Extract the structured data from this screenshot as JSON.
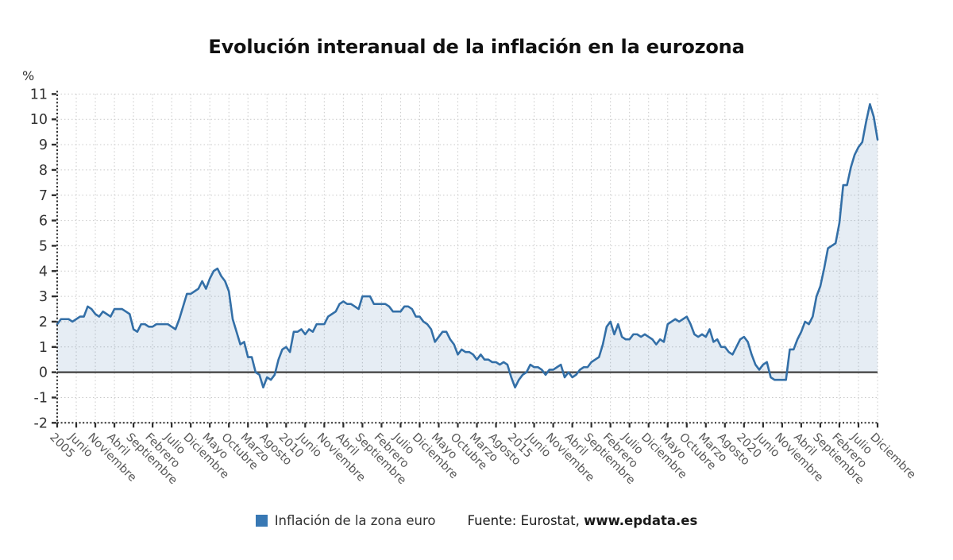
{
  "title": "Evolución interanual de la inflación en la eurozona",
  "y_axis": {
    "unit_label": "%",
    "min": -2,
    "max": 11,
    "tick_step": 1
  },
  "legend": {
    "series_label": "Inflación de la zona euro",
    "source_prefix": "Fuente: Eurostat, ",
    "source_link": "www.epdata.es"
  },
  "colors": {
    "line": "#336fa7",
    "legend_marker": "#3878b4",
    "fill": "rgba(51,111,167,0.12)",
    "grid": "#c9c9c9",
    "axis": "#2e2e2e",
    "zero_line": "#3f3f3f",
    "x_label": "#585858",
    "y_label": "#333333"
  },
  "chart_data": {
    "type": "area",
    "title": "Evolución interanual de la inflación en la eurozona",
    "frequency": "monthly",
    "x_start": "2005-01",
    "x_end": "2022-12",
    "x_tick_every": 5,
    "x_tick_labels": [
      "2005",
      "Junio",
      "Noviembre",
      "Abril",
      "Septiembre",
      "Febrero",
      "Julio",
      "Diciembre",
      "Mayo",
      "Octubre",
      "Marzo",
      "Agosto",
      "2010",
      "Junio",
      "Noviembre",
      "Abril",
      "Septiembre",
      "Febrero",
      "Julio",
      "Diciembre",
      "Mayo",
      "Octubre",
      "Marzo",
      "Agosto",
      "2015",
      "Junio",
      "Noviembre",
      "Abril",
      "Septiembre",
      "Febrero",
      "Julio",
      "Diciembre",
      "Mayo",
      "Octubre",
      "Marzo",
      "Agosto",
      "2020",
      "Junio",
      "Noviembre",
      "Abril",
      "Septiembre",
      "Febrero",
      "Julio",
      "Diciembre"
    ],
    "ylabel": "%",
    "ylim": [
      -2,
      11
    ],
    "grid": true,
    "legend_position": "bottom",
    "series": [
      {
        "name": "Inflación de la zona euro",
        "values": [
          1.9,
          2.1,
          2.1,
          2.1,
          2.0,
          2.1,
          2.2,
          2.2,
          2.6,
          2.5,
          2.3,
          2.2,
          2.4,
          2.3,
          2.2,
          2.5,
          2.5,
          2.5,
          2.4,
          2.3,
          1.7,
          1.6,
          1.9,
          1.9,
          1.8,
          1.8,
          1.9,
          1.9,
          1.9,
          1.9,
          1.8,
          1.7,
          2.1,
          2.6,
          3.1,
          3.1,
          3.2,
          3.3,
          3.6,
          3.3,
          3.7,
          4.0,
          4.1,
          3.8,
          3.6,
          3.2,
          2.1,
          1.6,
          1.1,
          1.2,
          0.6,
          0.6,
          0.0,
          -0.1,
          -0.6,
          -0.2,
          -0.3,
          -0.1,
          0.5,
          0.9,
          1.0,
          0.8,
          1.6,
          1.6,
          1.7,
          1.5,
          1.7,
          1.6,
          1.9,
          1.9,
          1.9,
          2.2,
          2.3,
          2.4,
          2.7,
          2.8,
          2.7,
          2.7,
          2.6,
          2.5,
          3.0,
          3.0,
          3.0,
          2.7,
          2.7,
          2.7,
          2.7,
          2.6,
          2.4,
          2.4,
          2.4,
          2.6,
          2.6,
          2.5,
          2.2,
          2.2,
          2.0,
          1.9,
          1.7,
          1.2,
          1.4,
          1.6,
          1.6,
          1.3,
          1.1,
          0.7,
          0.9,
          0.8,
          0.8,
          0.7,
          0.5,
          0.7,
          0.5,
          0.5,
          0.4,
          0.4,
          0.3,
          0.4,
          0.3,
          -0.2,
          -0.6,
          -0.3,
          -0.1,
          0.0,
          0.3,
          0.2,
          0.2,
          0.1,
          -0.1,
          0.1,
          0.1,
          0.2,
          0.3,
          -0.2,
          0.0,
          -0.2,
          -0.1,
          0.1,
          0.2,
          0.2,
          0.4,
          0.5,
          0.6,
          1.1,
          1.8,
          2.0,
          1.5,
          1.9,
          1.4,
          1.3,
          1.3,
          1.5,
          1.5,
          1.4,
          1.5,
          1.4,
          1.3,
          1.1,
          1.3,
          1.2,
          1.9,
          2.0,
          2.1,
          2.0,
          2.1,
          2.2,
          1.9,
          1.5,
          1.4,
          1.5,
          1.4,
          1.7,
          1.2,
          1.3,
          1.0,
          1.0,
          0.8,
          0.7,
          1.0,
          1.3,
          1.4,
          1.2,
          0.7,
          0.3,
          0.1,
          0.3,
          0.4,
          -0.2,
          -0.3,
          -0.3,
          -0.3,
          -0.3,
          0.9,
          0.9,
          1.3,
          1.6,
          2.0,
          1.9,
          2.2,
          3.0,
          3.4,
          4.1,
          4.9,
          5.0,
          5.1,
          5.9,
          7.4,
          7.4,
          8.1,
          8.6,
          8.9,
          9.1,
          9.9,
          10.6,
          10.1,
          9.2
        ]
      }
    ]
  }
}
